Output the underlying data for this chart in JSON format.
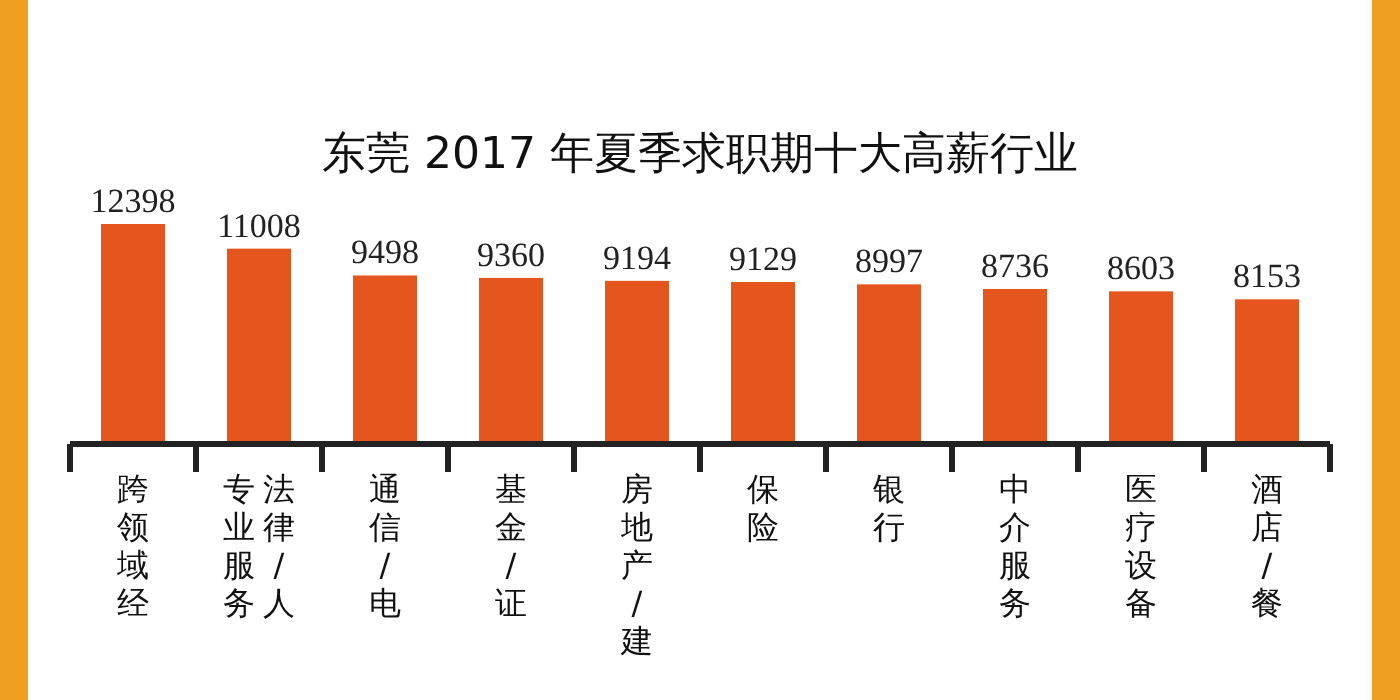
{
  "chart_data": {
    "type": "bar",
    "title": "东莞 2017 年夏季求职期十大高薪行业",
    "categories": [
      "跨领域经",
      "法律/人专业服务",
      "通信/电",
      "基金/证",
      "房地产/建",
      "保险",
      "银行",
      "中介服务",
      "医疗设备",
      "酒店/餐"
    ],
    "values": [
      12398,
      11008,
      9498,
      9360,
      9194,
      9129,
      8997,
      8736,
      8603,
      8153
    ],
    "color": "#e4561e",
    "data_labels": true
  }
}
